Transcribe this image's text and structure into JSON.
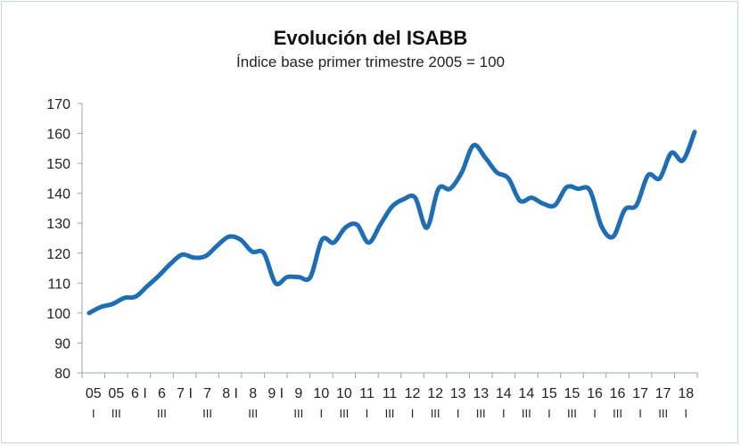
{
  "chart_data": {
    "type": "line",
    "title": "Evolución del ISABB",
    "subtitle": "Índice base primer trimestre 2005 = 100",
    "xlabel": "",
    "ylabel": "",
    "ylim": [
      80,
      170
    ],
    "yticks": [
      80,
      90,
      100,
      110,
      120,
      130,
      140,
      150,
      160,
      170
    ],
    "grid": false,
    "line_color": "#1f6eb5",
    "x_tick_labels": [
      {
        "top": "05",
        "bottom": "I"
      },
      {
        "top": "05",
        "bottom": "III"
      },
      {
        "top": "6 I",
        "bottom": ""
      },
      {
        "top": "6",
        "bottom": "III"
      },
      {
        "top": "7 I",
        "bottom": ""
      },
      {
        "top": "7",
        "bottom": "III"
      },
      {
        "top": "8 I",
        "bottom": ""
      },
      {
        "top": "8",
        "bottom": "III"
      },
      {
        "top": "9 I",
        "bottom": ""
      },
      {
        "top": "9",
        "bottom": "III"
      },
      {
        "top": "10",
        "bottom": "I"
      },
      {
        "top": "10",
        "bottom": "III"
      },
      {
        "top": "11",
        "bottom": "I"
      },
      {
        "top": "11",
        "bottom": "III"
      },
      {
        "top": "12",
        "bottom": "I"
      },
      {
        "top": "12",
        "bottom": "III"
      },
      {
        "top": "13",
        "bottom": "I"
      },
      {
        "top": "13",
        "bottom": "III"
      },
      {
        "top": "14",
        "bottom": "I"
      },
      {
        "top": "14",
        "bottom": "III"
      },
      {
        "top": "15",
        "bottom": "I"
      },
      {
        "top": "15",
        "bottom": "III"
      },
      {
        "top": "16",
        "bottom": "I"
      },
      {
        "top": "16",
        "bottom": "III"
      },
      {
        "top": "17",
        "bottom": "I"
      },
      {
        "top": "17",
        "bottom": "III"
      },
      {
        "top": "18",
        "bottom": "I"
      }
    ],
    "series": [
      {
        "name": "",
        "values": [
          100,
          102,
          103,
          105,
          105.5,
          109,
          112.5,
          116.5,
          119.5,
          118.5,
          119,
          122.5,
          125.5,
          124.5,
          120.5,
          120,
          110,
          112,
          112,
          112,
          124.5,
          123.5,
          128.5,
          129.5,
          123.5,
          129.5,
          135.5,
          138,
          138.5,
          128.5,
          141.5,
          141.5,
          147,
          156,
          152,
          147,
          145,
          137.5,
          138.5,
          136.5,
          136,
          142,
          141.5,
          141,
          129,
          125.5,
          134.5,
          136,
          146,
          145,
          153.5,
          151,
          160.5
        ]
      }
    ]
  }
}
